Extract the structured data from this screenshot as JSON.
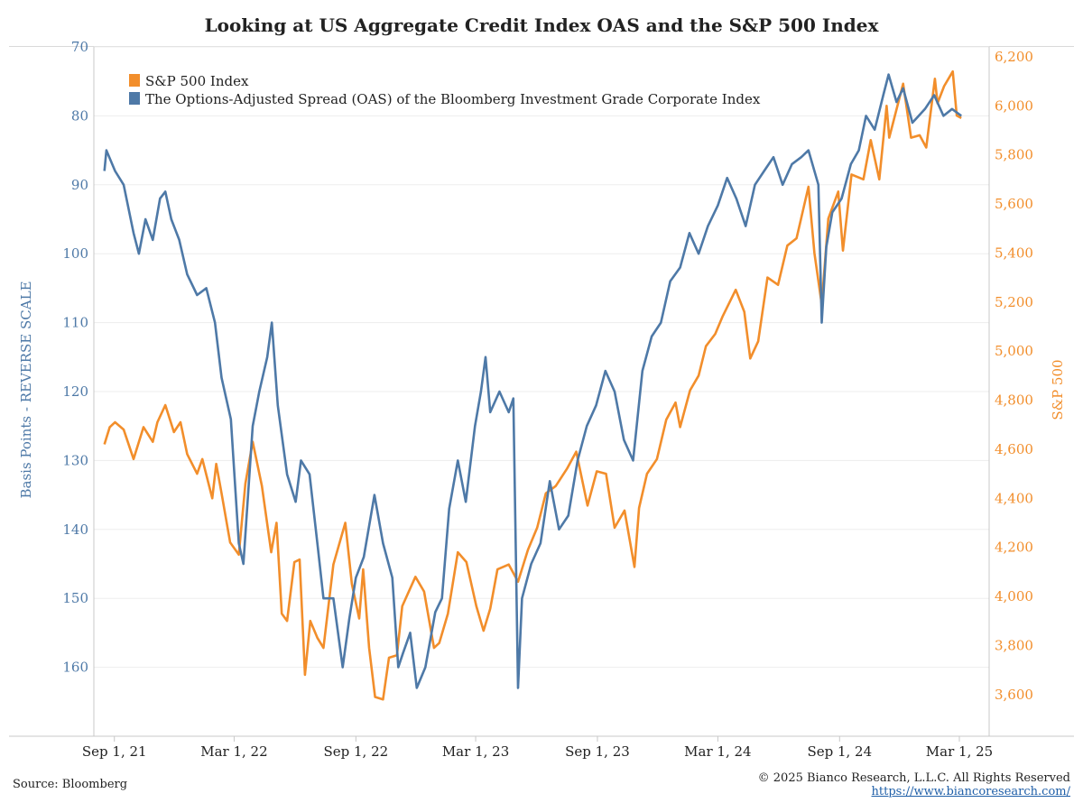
{
  "chart_data": {
    "type": "line",
    "title": "Looking at US Aggregate Credit Index OAS and the S&P 500 Index",
    "left_axis": {
      "label": "Basis Points - REVERSE SCALE",
      "reversed": true,
      "range": [
        70,
        170
      ],
      "ticks": [
        70,
        80,
        90,
        100,
        110,
        120,
        130,
        140,
        150,
        160
      ]
    },
    "right_axis": {
      "label": "S&P 500",
      "range": [
        3430,
        6240
      ],
      "ticks": [
        3600,
        3800,
        4000,
        4200,
        4400,
        4600,
        4800,
        5000,
        5200,
        5400,
        5600,
        5800,
        6000,
        6200
      ],
      "tick_labels": [
        "3,600",
        "3,800",
        "4,000",
        "4,200",
        "4,400",
        "4,600",
        "4,800",
        "5,000",
        "5,200",
        "5,400",
        "5,600",
        "5,800",
        "6,000",
        "6,200"
      ]
    },
    "x_axis": {
      "start": "2021-08-01",
      "end": "2025-04-15",
      "ticks": [
        "2021-09-01",
        "2022-03-01",
        "2022-09-01",
        "2023-03-01",
        "2023-09-01",
        "2024-03-01",
        "2024-09-01",
        "2025-03-01"
      ],
      "tick_labels": [
        "Sep 1, 21",
        "Mar 1, 22",
        "Sep 1, 22",
        "Mar 1, 23",
        "Sep 1, 23",
        "Mar 1, 24",
        "Sep 1, 24",
        "Mar 1, 25"
      ]
    },
    "grid": true,
    "legend_position": "top-left",
    "series": [
      {
        "name": "S&P 500 Index",
        "axis": "right",
        "color": "#f28e2b",
        "points": [
          [
            "2021-08-17",
            4620
          ],
          [
            "2021-08-25",
            4690
          ],
          [
            "2021-09-02",
            4710
          ],
          [
            "2021-09-15",
            4680
          ],
          [
            "2021-09-30",
            4560
          ],
          [
            "2021-10-15",
            4690
          ],
          [
            "2021-10-29",
            4630
          ],
          [
            "2021-11-05",
            4710
          ],
          [
            "2021-11-17",
            4780
          ],
          [
            "2021-11-30",
            4670
          ],
          [
            "2021-12-10",
            4710
          ],
          [
            "2021-12-20",
            4580
          ],
          [
            "2022-01-04",
            4500
          ],
          [
            "2022-01-12",
            4560
          ],
          [
            "2022-01-27",
            4400
          ],
          [
            "2022-02-02",
            4540
          ],
          [
            "2022-02-10",
            4420
          ],
          [
            "2022-02-23",
            4220
          ],
          [
            "2022-03-08",
            4170
          ],
          [
            "2022-03-18",
            4460
          ],
          [
            "2022-03-29",
            4630
          ],
          [
            "2022-04-12",
            4450
          ],
          [
            "2022-04-26",
            4180
          ],
          [
            "2022-05-04",
            4300
          ],
          [
            "2022-05-12",
            3930
          ],
          [
            "2022-05-20",
            3900
          ],
          [
            "2022-05-31",
            4140
          ],
          [
            "2022-06-08",
            4150
          ],
          [
            "2022-06-16",
            3680
          ],
          [
            "2022-06-24",
            3900
          ],
          [
            "2022-07-05",
            3830
          ],
          [
            "2022-07-14",
            3790
          ],
          [
            "2022-07-29",
            4130
          ],
          [
            "2022-08-16",
            4300
          ],
          [
            "2022-08-26",
            4050
          ],
          [
            "2022-09-06",
            3910
          ],
          [
            "2022-09-12",
            4110
          ],
          [
            "2022-09-21",
            3790
          ],
          [
            "2022-09-30",
            3590
          ],
          [
            "2022-10-12",
            3580
          ],
          [
            "2022-10-21",
            3750
          ],
          [
            "2022-11-02",
            3760
          ],
          [
            "2022-11-10",
            3960
          ],
          [
            "2022-11-30",
            4080
          ],
          [
            "2022-12-13",
            4020
          ],
          [
            "2022-12-28",
            3790
          ],
          [
            "2023-01-05",
            3810
          ],
          [
            "2023-01-18",
            3930
          ],
          [
            "2023-02-02",
            4180
          ],
          [
            "2023-02-15",
            4140
          ],
          [
            "2023-03-02",
            3960
          ],
          [
            "2023-03-13",
            3860
          ],
          [
            "2023-03-23",
            3950
          ],
          [
            "2023-04-03",
            4110
          ],
          [
            "2023-04-20",
            4130
          ],
          [
            "2023-05-04",
            4060
          ],
          [
            "2023-05-19",
            4190
          ],
          [
            "2023-06-02",
            4280
          ],
          [
            "2023-06-15",
            4420
          ],
          [
            "2023-06-30",
            4450
          ],
          [
            "2023-07-17",
            4520
          ],
          [
            "2023-07-31",
            4590
          ],
          [
            "2023-08-17",
            4370
          ],
          [
            "2023-08-31",
            4510
          ],
          [
            "2023-09-14",
            4500
          ],
          [
            "2023-09-27",
            4280
          ],
          [
            "2023-10-12",
            4350
          ],
          [
            "2023-10-27",
            4120
          ],
          [
            "2023-11-03",
            4360
          ],
          [
            "2023-11-15",
            4500
          ],
          [
            "2023-11-30",
            4560
          ],
          [
            "2023-12-14",
            4720
          ],
          [
            "2023-12-28",
            4790
          ],
          [
            "2024-01-04",
            4690
          ],
          [
            "2024-01-19",
            4840
          ],
          [
            "2024-02-01",
            4900
          ],
          [
            "2024-02-12",
            5020
          ],
          [
            "2024-02-26",
            5070
          ],
          [
            "2024-03-08",
            5140
          ],
          [
            "2024-03-28",
            5250
          ],
          [
            "2024-04-10",
            5160
          ],
          [
            "2024-04-19",
            4970
          ],
          [
            "2024-05-01",
            5040
          ],
          [
            "2024-05-15",
            5300
          ],
          [
            "2024-05-31",
            5270
          ],
          [
            "2024-06-14",
            5430
          ],
          [
            "2024-06-28",
            5460
          ],
          [
            "2024-07-16",
            5670
          ],
          [
            "2024-07-25",
            5400
          ],
          [
            "2024-08-05",
            5190
          ],
          [
            "2024-08-15",
            5540
          ],
          [
            "2024-08-30",
            5650
          ],
          [
            "2024-09-06",
            5410
          ],
          [
            "2024-09-19",
            5720
          ],
          [
            "2024-10-07",
            5700
          ],
          [
            "2024-10-18",
            5860
          ],
          [
            "2024-10-31",
            5700
          ],
          [
            "2024-11-11",
            6000
          ],
          [
            "2024-11-15",
            5870
          ],
          [
            "2024-12-06",
            6090
          ],
          [
            "2024-12-18",
            5870
          ],
          [
            "2024-12-31",
            5880
          ],
          [
            "2025-01-10",
            5830
          ],
          [
            "2025-01-23",
            6110
          ],
          [
            "2025-01-27",
            6010
          ],
          [
            "2025-02-06",
            6080
          ],
          [
            "2025-02-19",
            6140
          ],
          [
            "2025-02-25",
            5960
          ],
          [
            "2025-03-04",
            5950
          ]
        ]
      },
      {
        "name": "The Options-Adjusted Spread (OAS) of the Bloomberg Investment Grade Corporate Index",
        "axis": "left",
        "color": "#4e79a7",
        "points": [
          [
            "2021-08-17",
            88
          ],
          [
            "2021-08-20",
            85
          ],
          [
            "2021-09-02",
            88
          ],
          [
            "2021-09-15",
            90
          ],
          [
            "2021-09-30",
            97
          ],
          [
            "2021-10-08",
            100
          ],
          [
            "2021-10-18",
            95
          ],
          [
            "2021-10-29",
            98
          ],
          [
            "2021-11-09",
            92
          ],
          [
            "2021-11-17",
            91
          ],
          [
            "2021-11-26",
            95
          ],
          [
            "2021-12-08",
            98
          ],
          [
            "2021-12-20",
            103
          ],
          [
            "2022-01-04",
            106
          ],
          [
            "2022-01-18",
            105
          ],
          [
            "2022-01-31",
            110
          ],
          [
            "2022-02-10",
            118
          ],
          [
            "2022-02-24",
            124
          ],
          [
            "2022-03-08",
            142
          ],
          [
            "2022-03-15",
            145
          ],
          [
            "2022-03-29",
            125
          ],
          [
            "2022-04-08",
            120
          ],
          [
            "2022-04-20",
            115
          ],
          [
            "2022-04-27",
            110
          ],
          [
            "2022-05-06",
            122
          ],
          [
            "2022-05-20",
            132
          ],
          [
            "2022-06-02",
            136
          ],
          [
            "2022-06-10",
            130
          ],
          [
            "2022-06-23",
            132
          ],
          [
            "2022-07-06",
            143
          ],
          [
            "2022-07-14",
            150
          ],
          [
            "2022-07-29",
            150
          ],
          [
            "2022-08-12",
            160
          ],
          [
            "2022-08-22",
            153
          ],
          [
            "2022-09-01",
            147
          ],
          [
            "2022-09-13",
            144
          ],
          [
            "2022-09-29",
            135
          ],
          [
            "2022-10-12",
            142
          ],
          [
            "2022-10-26",
            147
          ],
          [
            "2022-11-04",
            160
          ],
          [
            "2022-11-11",
            158
          ],
          [
            "2022-11-22",
            155
          ],
          [
            "2022-12-02",
            163
          ],
          [
            "2022-12-15",
            160
          ],
          [
            "2022-12-30",
            152
          ],
          [
            "2023-01-09",
            150
          ],
          [
            "2023-01-20",
            137
          ],
          [
            "2023-02-02",
            130
          ],
          [
            "2023-02-14",
            136
          ],
          [
            "2023-02-28",
            125
          ],
          [
            "2023-03-09",
            120
          ],
          [
            "2023-03-16",
            115
          ],
          [
            "2023-03-23",
            123
          ],
          [
            "2023-04-06",
            120
          ],
          [
            "2023-04-20",
            123
          ],
          [
            "2023-04-27",
            121
          ],
          [
            "2023-05-04",
            163
          ],
          [
            "2023-05-10",
            150
          ],
          [
            "2023-05-24",
            145
          ],
          [
            "2023-06-07",
            142
          ],
          [
            "2023-06-21",
            133
          ],
          [
            "2023-07-05",
            140
          ],
          [
            "2023-07-19",
            138
          ],
          [
            "2023-08-02",
            130
          ],
          [
            "2023-08-16",
            125
          ],
          [
            "2023-08-30",
            122
          ],
          [
            "2023-09-13",
            117
          ],
          [
            "2023-09-27",
            120
          ],
          [
            "2023-10-11",
            127
          ],
          [
            "2023-10-25",
            130
          ],
          [
            "2023-11-08",
            117
          ],
          [
            "2023-11-22",
            112
          ],
          [
            "2023-12-06",
            110
          ],
          [
            "2023-12-20",
            104
          ],
          [
            "2024-01-04",
            102
          ],
          [
            "2024-01-18",
            97
          ],
          [
            "2024-02-01",
            100
          ],
          [
            "2024-02-15",
            96
          ],
          [
            "2024-03-01",
            93
          ],
          [
            "2024-03-15",
            89
          ],
          [
            "2024-03-29",
            92
          ],
          [
            "2024-04-12",
            96
          ],
          [
            "2024-04-26",
            90
          ],
          [
            "2024-05-10",
            88
          ],
          [
            "2024-05-24",
            86
          ],
          [
            "2024-06-07",
            90
          ],
          [
            "2024-06-21",
            87
          ],
          [
            "2024-07-05",
            86
          ],
          [
            "2024-07-16",
            85
          ],
          [
            "2024-07-31",
            90
          ],
          [
            "2024-08-05",
            110
          ],
          [
            "2024-08-12",
            99
          ],
          [
            "2024-08-21",
            94
          ],
          [
            "2024-09-04",
            92
          ],
          [
            "2024-09-18",
            87
          ],
          [
            "2024-09-30",
            85
          ],
          [
            "2024-10-11",
            80
          ],
          [
            "2024-10-24",
            82
          ],
          [
            "2024-11-06",
            77
          ],
          [
            "2024-11-14",
            74
          ],
          [
            "2024-11-26",
            78
          ],
          [
            "2024-12-06",
            76
          ],
          [
            "2024-12-20",
            81
          ],
          [
            "2025-01-08",
            79
          ],
          [
            "2025-01-22",
            77
          ],
          [
            "2025-02-05",
            80
          ],
          [
            "2025-02-18",
            79
          ],
          [
            "2025-03-04",
            80
          ]
        ]
      }
    ]
  },
  "footer": {
    "source": "Source: Bloomberg",
    "copyright": "© 2025 Bianco Research, L.L.C. All Rights Reserved",
    "link": "https://www.biancoresearch.com/"
  }
}
